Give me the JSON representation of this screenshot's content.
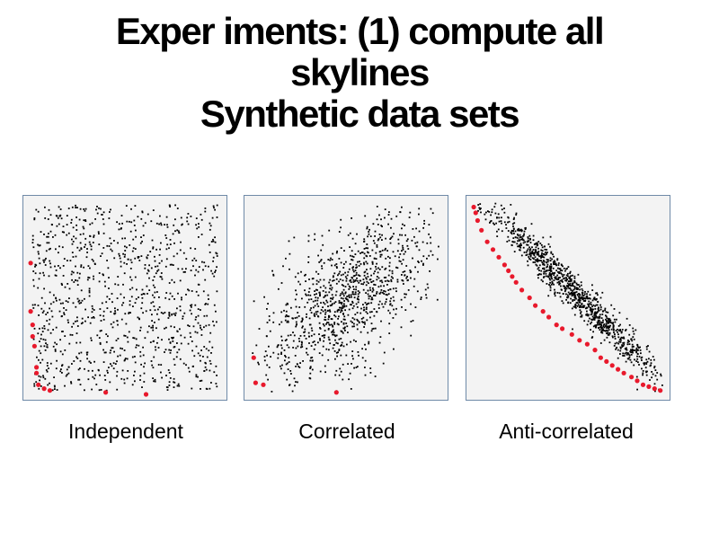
{
  "slide": {
    "title_lines": [
      "Exper iments: (1) compute all",
      "skylines",
      "Synthetic data sets"
    ]
  },
  "colors": {
    "data_point": "#000000",
    "skyline_point": "#e8192c",
    "panel_border": "#6f8aa8",
    "panel_background": "#f3f3f3"
  },
  "chart_data": [
    {
      "type": "scatter",
      "caption": "Independent",
      "distribution": "independent",
      "xlim": [
        0,
        1
      ],
      "ylim": [
        0,
        1
      ],
      "point_count": 1000,
      "skyline_points": [
        {
          "x": 0.01,
          "y": 0.68
        },
        {
          "x": 0.01,
          "y": 0.43
        },
        {
          "x": 0.02,
          "y": 0.36
        },
        {
          "x": 0.02,
          "y": 0.3
        },
        {
          "x": 0.03,
          "y": 0.25
        },
        {
          "x": 0.04,
          "y": 0.14
        },
        {
          "x": 0.04,
          "y": 0.11
        },
        {
          "x": 0.05,
          "y": 0.05
        },
        {
          "x": 0.08,
          "y": 0.03
        },
        {
          "x": 0.11,
          "y": 0.02
        },
        {
          "x": 0.4,
          "y": 0.01
        },
        {
          "x": 0.61,
          "y": 0.0
        }
      ]
    },
    {
      "type": "scatter",
      "caption": "Correlated",
      "distribution": "correlated",
      "xlim": [
        0,
        1
      ],
      "ylim": [
        0,
        1
      ],
      "point_count": 1000,
      "skyline_points": [
        {
          "x": 0.02,
          "y": 0.19
        },
        {
          "x": 0.03,
          "y": 0.06
        },
        {
          "x": 0.07,
          "y": 0.05
        },
        {
          "x": 0.45,
          "y": 0.01
        }
      ]
    },
    {
      "type": "scatter",
      "caption": "Anti-correlated",
      "distribution": "anti-correlated",
      "xlim": [
        0,
        1
      ],
      "ylim": [
        0,
        1
      ],
      "point_count": 1000,
      "skyline_points": [
        {
          "x": 0.01,
          "y": 0.97
        },
        {
          "x": 0.02,
          "y": 0.94
        },
        {
          "x": 0.03,
          "y": 0.9
        },
        {
          "x": 0.05,
          "y": 0.85
        },
        {
          "x": 0.08,
          "y": 0.79
        },
        {
          "x": 0.11,
          "y": 0.75
        },
        {
          "x": 0.14,
          "y": 0.71
        },
        {
          "x": 0.17,
          "y": 0.67
        },
        {
          "x": 0.19,
          "y": 0.64
        },
        {
          "x": 0.21,
          "y": 0.61
        },
        {
          "x": 0.23,
          "y": 0.58
        },
        {
          "x": 0.26,
          "y": 0.54
        },
        {
          "x": 0.3,
          "y": 0.5
        },
        {
          "x": 0.33,
          "y": 0.46
        },
        {
          "x": 0.37,
          "y": 0.43
        },
        {
          "x": 0.4,
          "y": 0.4
        },
        {
          "x": 0.44,
          "y": 0.36
        },
        {
          "x": 0.47,
          "y": 0.34
        },
        {
          "x": 0.52,
          "y": 0.31
        },
        {
          "x": 0.56,
          "y": 0.28
        },
        {
          "x": 0.6,
          "y": 0.26
        },
        {
          "x": 0.64,
          "y": 0.23
        },
        {
          "x": 0.67,
          "y": 0.19
        },
        {
          "x": 0.7,
          "y": 0.17
        },
        {
          "x": 0.73,
          "y": 0.15
        },
        {
          "x": 0.76,
          "y": 0.13
        },
        {
          "x": 0.79,
          "y": 0.11
        },
        {
          "x": 0.83,
          "y": 0.09
        },
        {
          "x": 0.86,
          "y": 0.07
        },
        {
          "x": 0.89,
          "y": 0.05
        },
        {
          "x": 0.92,
          "y": 0.04
        },
        {
          "x": 0.95,
          "y": 0.03
        },
        {
          "x": 0.98,
          "y": 0.02
        }
      ]
    }
  ]
}
